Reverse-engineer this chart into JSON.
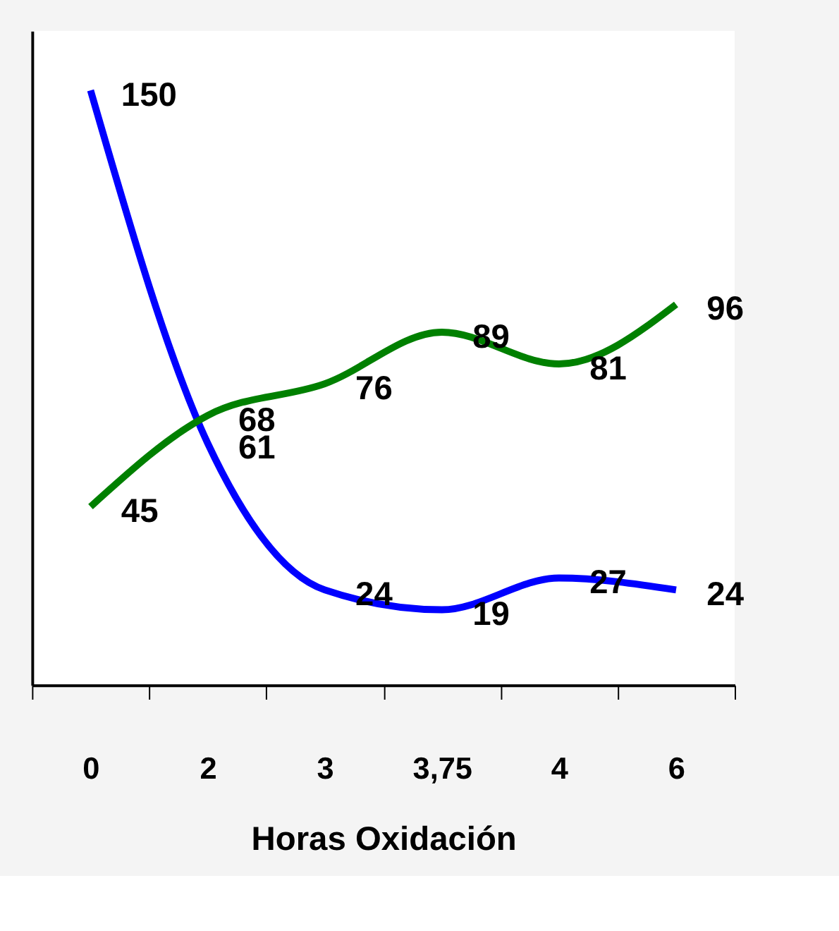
{
  "chart_data": {
    "type": "line",
    "xlabel": "Horas Oxidación",
    "categories": [
      "0",
      "2",
      "3",
      "3,75",
      "4",
      "6"
    ],
    "series": [
      {
        "color": "#0000ff",
        "values": [
          150,
          61,
          24,
          19,
          27,
          24
        ]
      },
      {
        "color": "#008000",
        "values": [
          45,
          68,
          76,
          89,
          81,
          96
        ]
      }
    ],
    "ylim": [
      0,
      165
    ],
    "tick_labels": "x",
    "data_labels": true,
    "grid": false,
    "marker": "none",
    "line_style": "solid"
  }
}
